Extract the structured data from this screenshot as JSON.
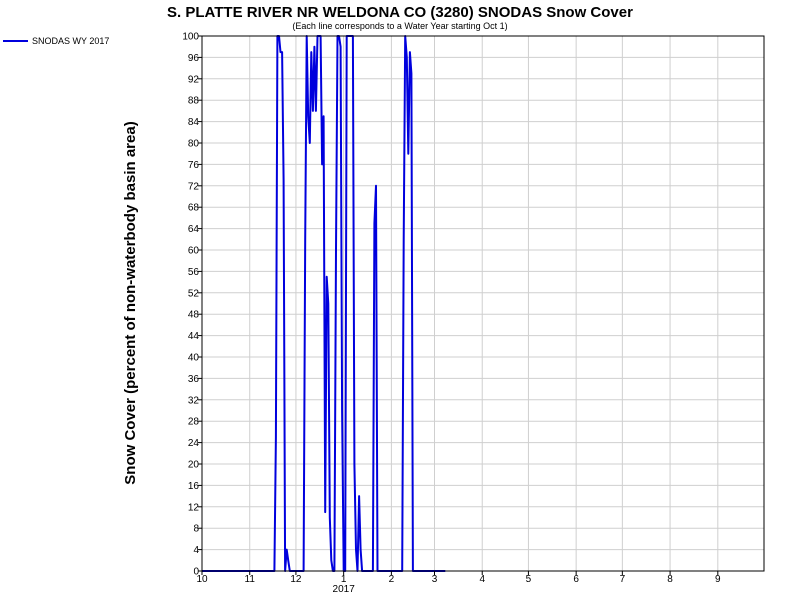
{
  "chart_data": {
    "type": "line",
    "title": "S. PLATTE RIVER NR WELDONA CO (3280) SNODAS Snow Cover",
    "subtitle": "(Each line corresponds to a Water Year starting Oct 1)",
    "ylabel": "Snow Cover (percent of non-waterbody basin area)",
    "xlabel": "",
    "ylim": [
      0,
      100
    ],
    "xlim": [
      "2016-10-01",
      "2017-09-30"
    ],
    "yticks": [
      0,
      4,
      8,
      12,
      16,
      20,
      24,
      28,
      32,
      36,
      40,
      44,
      48,
      52,
      56,
      60,
      64,
      68,
      72,
      76,
      80,
      84,
      88,
      92,
      96,
      100
    ],
    "xticks": [
      {
        "date": "2016-10-01",
        "label": "10"
      },
      {
        "date": "2016-11-01",
        "label": "11"
      },
      {
        "date": "2016-12-01",
        "label": "12"
      },
      {
        "date": "2017-01-01",
        "label": "1"
      },
      {
        "date": "2017-02-01",
        "label": "2"
      },
      {
        "date": "2017-03-01",
        "label": "3"
      },
      {
        "date": "2017-04-01",
        "label": "4"
      },
      {
        "date": "2017-05-01",
        "label": "5"
      },
      {
        "date": "2017-06-01",
        "label": "6"
      },
      {
        "date": "2017-07-01",
        "label": "7"
      },
      {
        "date": "2017-08-01",
        "label": "8"
      },
      {
        "date": "2017-09-01",
        "label": "9"
      }
    ],
    "year_label": {
      "date": "2017-01-01",
      "label": "2017"
    },
    "grid": true,
    "legend_position": "top-left",
    "series": [
      {
        "name": "SNODAS WY 2017",
        "color": "#0000dd",
        "points": [
          [
            "2016-10-01",
            0
          ],
          [
            "2016-11-17",
            0
          ],
          [
            "2016-11-18",
            25
          ],
          [
            "2016-11-19",
            100
          ],
          [
            "2016-11-20",
            100
          ],
          [
            "2016-11-21",
            97
          ],
          [
            "2016-11-22",
            97
          ],
          [
            "2016-11-23",
            73
          ],
          [
            "2016-11-24",
            0
          ],
          [
            "2016-11-25",
            4
          ],
          [
            "2016-11-26",
            2
          ],
          [
            "2016-11-27",
            0
          ],
          [
            "2016-12-06",
            0
          ],
          [
            "2016-12-07",
            62
          ],
          [
            "2016-12-08",
            100
          ],
          [
            "2016-12-09",
            85
          ],
          [
            "2016-12-10",
            80
          ],
          [
            "2016-12-11",
            97
          ],
          [
            "2016-12-12",
            86
          ],
          [
            "2016-12-13",
            98
          ],
          [
            "2016-12-14",
            86
          ],
          [
            "2016-12-15",
            100
          ],
          [
            "2016-12-16",
            100
          ],
          [
            "2016-12-17",
            100
          ],
          [
            "2016-12-18",
            76
          ],
          [
            "2016-12-19",
            85
          ],
          [
            "2016-12-20",
            11
          ],
          [
            "2016-12-21",
            55
          ],
          [
            "2016-12-22",
            50
          ],
          [
            "2016-12-23",
            10
          ],
          [
            "2016-12-24",
            2
          ],
          [
            "2016-12-25",
            0
          ],
          [
            "2016-12-26",
            0
          ],
          [
            "2016-12-27",
            60
          ],
          [
            "2016-12-28",
            100
          ],
          [
            "2016-12-29",
            100
          ],
          [
            "2016-12-30",
            98
          ],
          [
            "2016-12-31",
            30
          ],
          [
            "2017-01-01",
            0
          ],
          [
            "2017-01-02",
            0
          ],
          [
            "2017-01-03",
            100
          ],
          [
            "2017-01-04",
            100
          ],
          [
            "2017-01-05",
            100
          ],
          [
            "2017-01-06",
            100
          ],
          [
            "2017-01-07",
            100
          ],
          [
            "2017-01-08",
            20
          ],
          [
            "2017-01-09",
            4
          ],
          [
            "2017-01-10",
            0
          ],
          [
            "2017-01-11",
            14
          ],
          [
            "2017-01-12",
            4
          ],
          [
            "2017-01-13",
            0
          ],
          [
            "2017-01-20",
            0
          ],
          [
            "2017-01-21",
            65
          ],
          [
            "2017-01-22",
            72
          ],
          [
            "2017-01-23",
            0
          ],
          [
            "2017-02-08",
            0
          ],
          [
            "2017-02-09",
            62
          ],
          [
            "2017-02-10",
            100
          ],
          [
            "2017-02-11",
            96
          ],
          [
            "2017-02-12",
            78
          ],
          [
            "2017-02-13",
            97
          ],
          [
            "2017-02-14",
            93
          ],
          [
            "2017-02-15",
            0
          ],
          [
            "2017-02-16",
            0
          ],
          [
            "2017-03-08",
            0
          ]
        ]
      }
    ]
  }
}
